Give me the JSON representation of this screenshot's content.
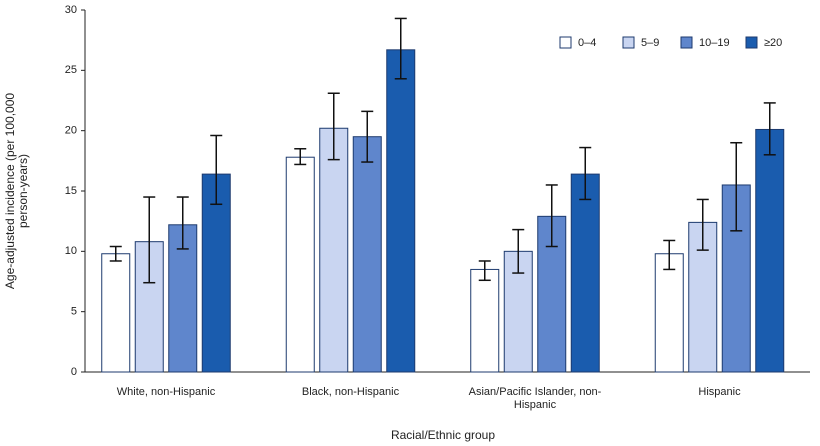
{
  "chart_data": {
    "type": "bar",
    "x_label": "Racial/Ethnic group",
    "y_label": "Age-adjusted incidence (per 100,000 person-years)",
    "categories": [
      "White, non-Hispanic",
      "Black, non-Hispanic",
      "Asian/Pacific Islander, non-Hispanic",
      "Hispanic"
    ],
    "series": [
      {
        "name": "0–4",
        "color": "#ffffff",
        "values": [
          9.8,
          17.8,
          8.5,
          9.8
        ],
        "ci_low": [
          9.2,
          17.2,
          7.6,
          8.5
        ],
        "ci_high": [
          10.4,
          18.5,
          9.2,
          10.9
        ]
      },
      {
        "name": "5–9",
        "color": "#c9d5f1",
        "values": [
          10.8,
          20.2,
          10.0,
          12.4
        ],
        "ci_low": [
          7.4,
          17.6,
          8.2,
          10.1
        ],
        "ci_high": [
          14.5,
          23.1,
          11.8,
          14.3
        ]
      },
      {
        "name": "10–19",
        "color": "#5f86cc",
        "values": [
          12.2,
          19.5,
          12.9,
          15.5
        ],
        "ci_low": [
          10.2,
          17.4,
          10.4,
          11.7
        ],
        "ci_high": [
          14.5,
          21.6,
          15.5,
          19.0
        ]
      },
      {
        "name": "≥20",
        "color": "#1a5cae",
        "values": [
          16.4,
          26.7,
          16.4,
          20.1
        ],
        "ci_low": [
          13.9,
          24.3,
          14.3,
          18.0
        ],
        "ci_high": [
          19.6,
          29.3,
          18.6,
          22.3
        ]
      }
    ],
    "ylim": [
      0,
      30
    ],
    "yticks": [
      0,
      5,
      10,
      15,
      20,
      25,
      30
    ],
    "grid": false,
    "legend": "top-right"
  }
}
